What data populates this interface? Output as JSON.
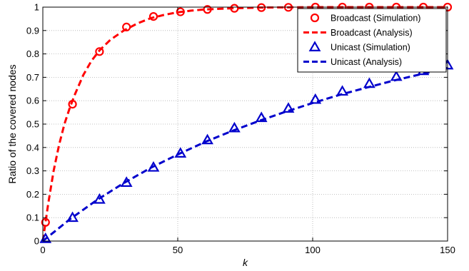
{
  "chart_data": {
    "type": "line",
    "title": "",
    "xlabel": "k",
    "ylabel": "Ratio of the covered nodes",
    "xlim": [
      0,
      150
    ],
    "ylim": [
      0,
      1
    ],
    "xticks": [
      0,
      50,
      100,
      150
    ],
    "yticks": [
      0,
      0.1,
      0.2,
      0.3,
      0.4,
      0.5,
      0.6,
      0.7,
      0.8,
      0.9,
      1
    ],
    "grid": true,
    "legend_position": "top-right",
    "series": [
      {
        "name": "Broadcast (Simulation)",
        "style": "markers",
        "marker": "circle",
        "color": "#ff0000",
        "x": [
          1,
          11,
          21,
          31,
          41,
          51,
          61,
          71,
          81,
          91,
          101,
          111,
          121,
          131,
          141,
          150
        ],
        "y": [
          0.08,
          0.585,
          0.81,
          0.915,
          0.96,
          0.98,
          0.99,
          0.995,
          0.998,
          0.999,
          1.0,
          1.0,
          1.0,
          1.0,
          1.0,
          1.0
        ]
      },
      {
        "name": "Broadcast (Analysis)",
        "style": "dashed-line",
        "color": "#ff0000",
        "x": [
          0,
          2,
          4,
          6,
          8,
          10,
          12,
          15,
          18,
          21,
          25,
          30,
          35,
          40,
          45,
          50,
          55,
          60,
          70,
          80,
          90,
          100,
          110,
          120,
          130,
          140,
          150
        ],
        "y": [
          0.0,
          0.16,
          0.3,
          0.41,
          0.5,
          0.57,
          0.63,
          0.71,
          0.77,
          0.815,
          0.86,
          0.9,
          0.93,
          0.953,
          0.967,
          0.978,
          0.985,
          0.99,
          0.995,
          0.998,
          0.999,
          1.0,
          1.0,
          1.0,
          1.0,
          1.0,
          1.0
        ]
      },
      {
        "name": "Unicast (Simulation)",
        "style": "markers",
        "marker": "triangle",
        "color": "#0000cc",
        "x": [
          1,
          11,
          21,
          31,
          41,
          51,
          61,
          71,
          81,
          91,
          101,
          111,
          121,
          131,
          141,
          150
        ],
        "y": [
          0.01,
          0.1,
          0.178,
          0.25,
          0.315,
          0.375,
          0.432,
          0.483,
          0.527,
          0.567,
          0.605,
          0.64,
          0.673,
          0.703,
          0.728,
          0.752
        ]
      },
      {
        "name": "Unicast (Analysis)",
        "style": "dashed-line",
        "color": "#0000cc",
        "x": [
          0,
          10,
          20,
          30,
          40,
          50,
          60,
          70,
          80,
          90,
          100,
          110,
          120,
          130,
          140,
          150
        ],
        "y": [
          0.0,
          0.093,
          0.175,
          0.248,
          0.313,
          0.37,
          0.423,
          0.47,
          0.513,
          0.553,
          0.59,
          0.625,
          0.656,
          0.686,
          0.713,
          0.74
        ]
      }
    ]
  }
}
